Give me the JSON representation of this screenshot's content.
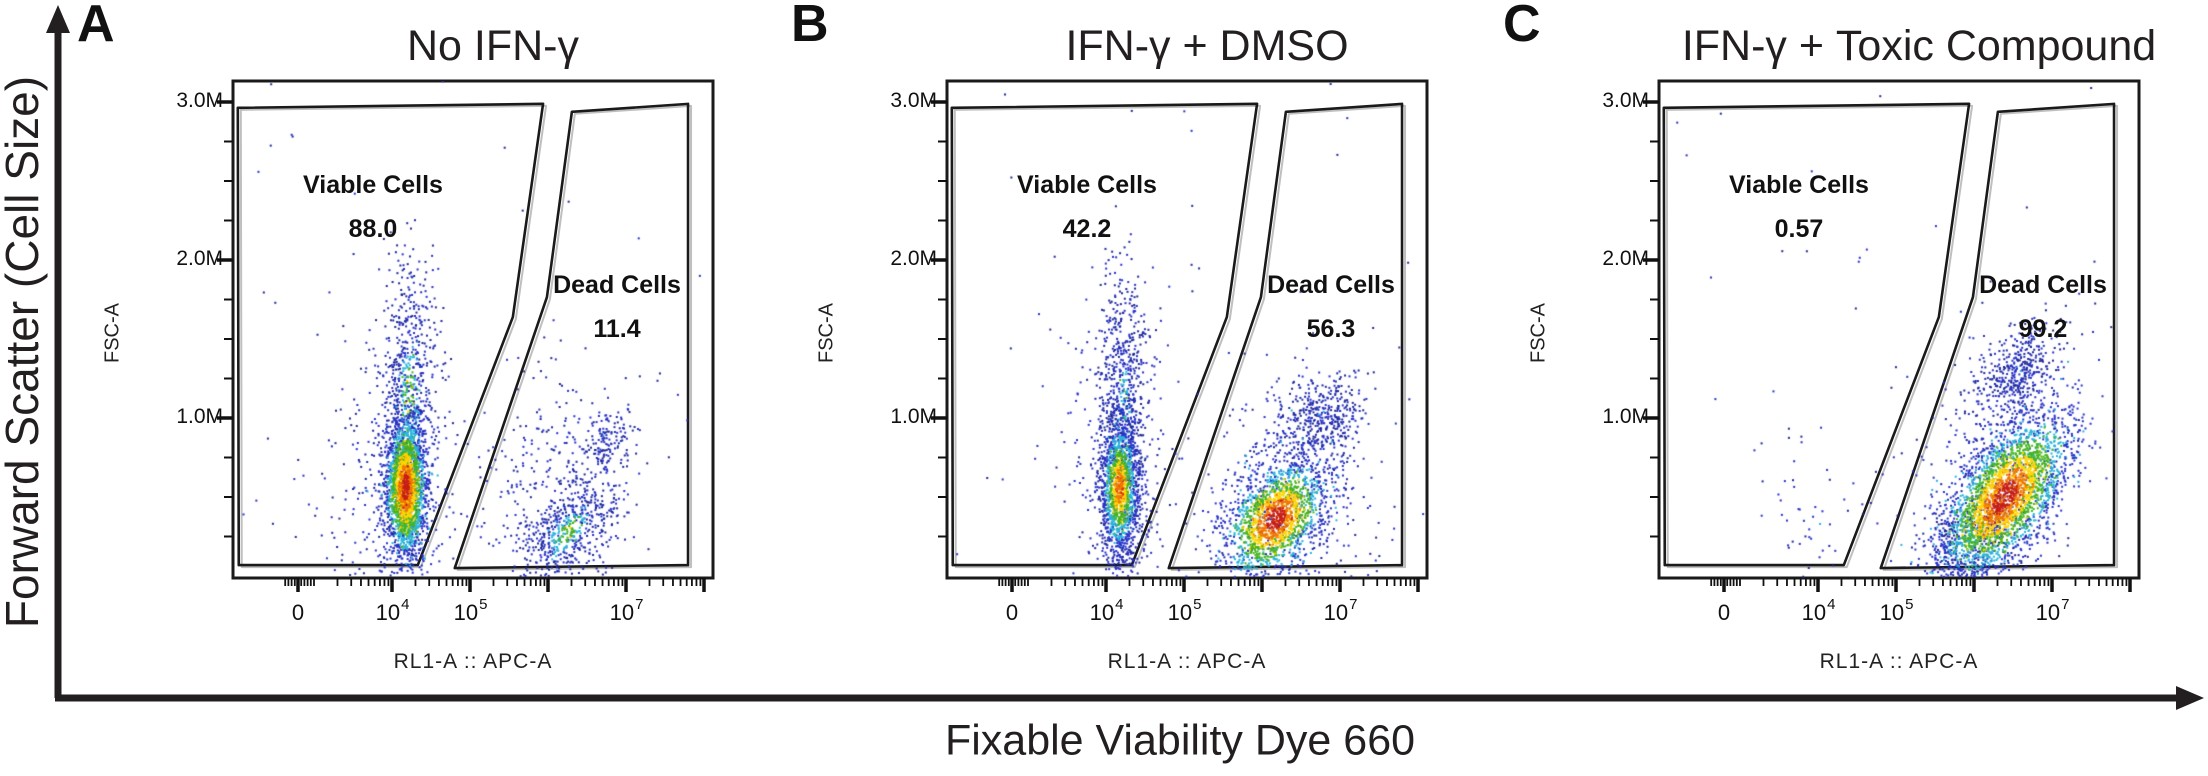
{
  "figure": {
    "outer_y_axis_label": "Forward Scatter (Cell Size)",
    "outer_x_axis_label": "Fixable Viability Dye 660"
  },
  "panels": [
    {
      "letter": "A",
      "title": "No IFN-γ",
      "y_axis_name": "FSC-A",
      "x_axis_name": "RL1-A :: APC-A",
      "y_ticks": [
        "3.0M",
        "2.0M",
        "1.0M"
      ],
      "x_ticks": [
        {
          "t": "0"
        },
        {
          "b": "10",
          "e": "4"
        },
        {
          "b": "10",
          "e": "5"
        },
        {
          "b": "10",
          "e": "7"
        }
      ],
      "viable": {
        "label": "Viable Cells",
        "value": "88.0"
      },
      "dead": {
        "label": "Dead Cells",
        "value": "11.4"
      }
    },
    {
      "letter": "B",
      "title": "IFN-γ + DMSO",
      "y_axis_name": "FSC-A",
      "x_axis_name": "RL1-A :: APC-A",
      "y_ticks": [
        "3.0M",
        "2.0M",
        "1.0M"
      ],
      "x_ticks": [
        {
          "t": "0"
        },
        {
          "b": "10",
          "e": "4"
        },
        {
          "b": "10",
          "e": "5"
        },
        {
          "b": "10",
          "e": "7"
        }
      ],
      "viable": {
        "label": "Viable Cells",
        "value": "42.2"
      },
      "dead": {
        "label": "Dead Cells",
        "value": "56.3"
      }
    },
    {
      "letter": "C",
      "title": "IFN-γ + Toxic Compound",
      "y_axis_name": "FSC-A",
      "x_axis_name": "RL1-A :: APC-A",
      "y_ticks": [
        "3.0M",
        "2.0M",
        "1.0M"
      ],
      "x_ticks": [
        {
          "t": "0"
        },
        {
          "b": "10",
          "e": "4"
        },
        {
          "b": "10",
          "e": "5"
        },
        {
          "b": "10",
          "e": "7"
        }
      ],
      "viable": {
        "label": "Viable Cells",
        "value": "0.57"
      },
      "dead": {
        "label": "Dead Cells",
        "value": "99.2"
      }
    }
  ],
  "chart_data": {
    "type": "scatter",
    "description": "Flow cytometry pseudocolor density dot plots of fixable viability dye staining; viable and dead cell gates with percent of cells in each gate.",
    "x_axis": {
      "label": "RL1-A :: APC-A (Fixable Viability Dye 660)",
      "scale": "biexponential",
      "labeled_ticks": [
        0,
        10000,
        100000,
        10000000
      ],
      "unlabeled_major_ticks": [
        1000000,
        100000000
      ]
    },
    "y_axis": {
      "label": "FSC-A (Forward Scatter, Cell Size)",
      "scale": "linear",
      "range_M": [
        0,
        3.15
      ],
      "labeled_ticks_M": [
        3.0,
        2.0,
        1.0
      ],
      "minor_step_M": 0.25
    },
    "density_colors": [
      "#c81e14",
      "#f07800",
      "#ffd400",
      "#46b41e",
      "#28b4dc",
      "#2832c8",
      "#1e2896"
    ],
    "gate_shapes_fraction": {
      "viable": [
        [
          0.01,
          0.054
        ],
        [
          0.646,
          0.046
        ],
        [
          0.583,
          0.475
        ],
        [
          0.385,
          0.974
        ],
        [
          0.012,
          0.974
        ]
      ],
      "dead": [
        [
          0.706,
          0.062
        ],
        [
          0.948,
          0.046
        ],
        [
          0.948,
          0.974
        ],
        [
          0.462,
          0.98
        ],
        [
          0.654,
          0.435
        ]
      ]
    },
    "panels": [
      {
        "condition": "No IFN-γ",
        "gates": {
          "viable_pct": 88.0,
          "dead_pct": 11.4
        },
        "populations": [
          {
            "x": 4000,
            "y": 0.35,
            "sx": 0.6,
            "sy": 0.3,
            "rot": 0,
            "n": 100,
            "heat": 5
          },
          {
            "x": 14000,
            "y": 0.75,
            "sx": 0.32,
            "sy": 0.5,
            "rot": 0,
            "n": 330,
            "heat": 5
          },
          {
            "x": 1300000,
            "y": 0.55,
            "sx": 0.5,
            "sy": 0.35,
            "rot": 0,
            "n": 300,
            "heat": 5
          },
          {
            "x": 5000000,
            "y": 0.85,
            "sx": 0.28,
            "sy": 0.1,
            "rot": -55,
            "n": 150,
            "heat": 5
          },
          {
            "type": "uniform",
            "n": 40
          },
          {
            "x": 1800000,
            "y": 0.28,
            "sx": 0.42,
            "sy": 0.11,
            "rot": -52,
            "n": 520,
            "heat": 3
          },
          {
            "x": 17000,
            "y": 1.15,
            "sx": 0.15,
            "sy": 0.42,
            "rot": 0,
            "n": 600,
            "heat": 3
          },
          {
            "x": 15000,
            "y": 0.56,
            "sx": 0.13,
            "sy": 0.22,
            "rot": 0,
            "n": 2300,
            "heat": 0
          }
        ]
      },
      {
        "condition": "IFN-γ + DMSO",
        "gates": {
          "viable_pct": 42.2,
          "dead_pct": 56.3
        },
        "populations": [
          {
            "x": 14000,
            "y": 0.75,
            "sx": 0.32,
            "sy": 0.52,
            "rot": 0,
            "n": 380,
            "heat": 5
          },
          {
            "x": 2200000,
            "y": 0.55,
            "sx": 0.5,
            "sy": 0.38,
            "rot": 0,
            "n": 450,
            "heat": 5
          },
          {
            "x": 6000000,
            "y": 1.0,
            "sx": 0.3,
            "sy": 0.12,
            "rot": -55,
            "n": 380,
            "heat": 5
          },
          {
            "type": "uniform",
            "n": 40
          },
          {
            "x": 17000,
            "y": 1.15,
            "sx": 0.15,
            "sy": 0.42,
            "rot": 0,
            "n": 550,
            "heat": 4
          },
          {
            "x": 15000,
            "y": 0.56,
            "sx": 0.13,
            "sy": 0.24,
            "rot": 0,
            "n": 1500,
            "heat": 1
          },
          {
            "x": 1500000,
            "y": 0.36,
            "sx": 0.42,
            "sy": 0.13,
            "rot": -55,
            "n": 1800,
            "heat": 0
          }
        ]
      },
      {
        "condition": "IFN-γ + Toxic Compound",
        "gates": {
          "viable_pct": 0.57,
          "dead_pct": 99.2
        },
        "populations": [
          {
            "x": 9000,
            "y": 0.45,
            "sx": 0.5,
            "sy": 0.35,
            "rot": 0,
            "n": 60,
            "heat": 5
          },
          {
            "x": 2000000,
            "y": 0.65,
            "sx": 0.45,
            "sy": 0.4,
            "rot": 0,
            "n": 330,
            "heat": 5
          },
          {
            "x": 3500000,
            "y": 1.3,
            "sx": 0.35,
            "sy": 0.1,
            "rot": -56,
            "n": 420,
            "heat": 5
          },
          {
            "type": "uniform",
            "n": 30
          },
          {
            "x": 900000,
            "y": 0.22,
            "sx": 0.35,
            "sy": 0.12,
            "rot": -40,
            "n": 400,
            "heat": 4
          },
          {
            "x": 2500000,
            "y": 0.5,
            "sx": 0.6,
            "sy": 0.14,
            "rot": -56,
            "n": 2900,
            "heat": 0
          }
        ]
      }
    ]
  }
}
